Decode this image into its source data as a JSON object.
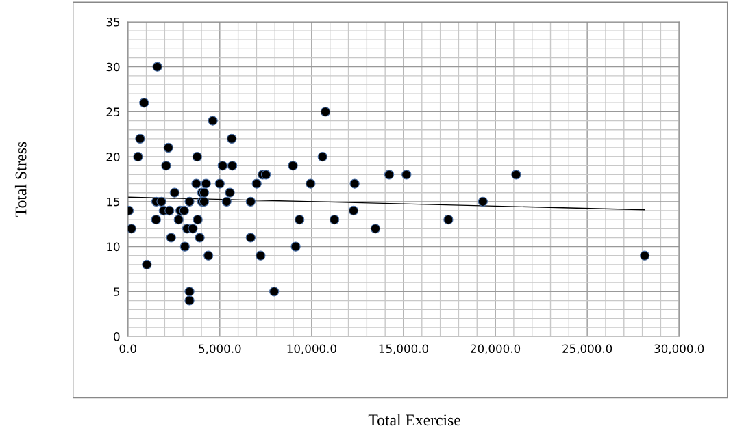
{
  "chart_data": {
    "type": "scatter",
    "xlabel": "Total Exercise",
    "ylabel": "Total Stress",
    "xlim": [
      0,
      30000
    ],
    "ylim": [
      0,
      35
    ],
    "xticks": [
      {
        "value": 0,
        "label": "0.0"
      },
      {
        "value": 1000,
        "label": null
      },
      {
        "value": 2000,
        "label": null
      },
      {
        "value": 3000,
        "label": null
      },
      {
        "value": 4000,
        "label": null
      },
      {
        "value": 5000,
        "label": "5,000.0"
      },
      {
        "value": 6000,
        "label": null
      },
      {
        "value": 7000,
        "label": null
      },
      {
        "value": 8000,
        "label": null
      },
      {
        "value": 9000,
        "label": null
      },
      {
        "value": 10000,
        "label": "10,000.0"
      },
      {
        "value": 11000,
        "label": null
      },
      {
        "value": 12000,
        "label": null
      },
      {
        "value": 13000,
        "label": null
      },
      {
        "value": 14000,
        "label": null
      },
      {
        "value": 15000,
        "label": "15,000.0"
      },
      {
        "value": 16000,
        "label": null
      },
      {
        "value": 17000,
        "label": null
      },
      {
        "value": 18000,
        "label": null
      },
      {
        "value": 19000,
        "label": null
      },
      {
        "value": 20000,
        "label": "20,000.0"
      },
      {
        "value": 21000,
        "label": null
      },
      {
        "value": 22000,
        "label": null
      },
      {
        "value": 23000,
        "label": null
      },
      {
        "value": 24000,
        "label": null
      },
      {
        "value": 25000,
        "label": "25,000.0"
      },
      {
        "value": 26000,
        "label": null
      },
      {
        "value": 27000,
        "label": null
      },
      {
        "value": 28000,
        "label": null
      },
      {
        "value": 29000,
        "label": null
      },
      {
        "value": 30000,
        "label": "30,000.0"
      }
    ],
    "yticks": [
      0,
      {
        "value": 1,
        "label": null
      },
      {
        "value": 2,
        "label": null
      },
      {
        "value": 3,
        "label": null
      },
      {
        "value": 4,
        "label": null
      },
      5,
      {
        "value": 6,
        "label": null
      },
      {
        "value": 7,
        "label": null
      },
      {
        "value": 8,
        "label": null
      },
      {
        "value": 9,
        "label": null
      },
      10,
      {
        "value": 11,
        "label": null
      },
      {
        "value": 12,
        "label": null
      },
      {
        "value": 13,
        "label": null
      },
      {
        "value": 14,
        "label": null
      },
      15,
      {
        "value": 16,
        "label": null
      },
      {
        "value": 17,
        "label": null
      },
      {
        "value": 18,
        "label": null
      },
      {
        "value": 19,
        "label": null
      },
      20,
      {
        "value": 21,
        "label": null
      },
      {
        "value": 22,
        "label": null
      },
      {
        "value": 23,
        "label": null
      },
      {
        "value": 24,
        "label": null
      },
      25,
      {
        "value": 26,
        "label": null
      },
      {
        "value": 27,
        "label": null
      },
      {
        "value": 28,
        "label": null
      },
      {
        "value": 29,
        "label": null
      },
      30,
      {
        "value": 31,
        "label": null
      },
      {
        "value": 32,
        "label": null
      },
      {
        "value": 33,
        "label": null
      },
      {
        "value": 34,
        "label": null
      },
      35
    ],
    "grid": true,
    "marker": "circle",
    "legend": false,
    "series": [
      {
        "color": "#000000",
        "x": [
          1600,
          880,
          4620,
          660,
          5650,
          2200,
          550,
          3770,
          2080,
          5150,
          5680,
          3720,
          4250,
          5000,
          2540,
          4030,
          4150,
          5550,
          1540,
          1820,
          3350,
          4030,
          4150,
          5370,
          6680,
          50,
          1940,
          2260,
          2850,
          3060,
          1530,
          2760,
          3800,
          190,
          3220,
          3530,
          2350,
          3910,
          6680,
          3100,
          4380,
          1030,
          3350,
          3350,
          10750,
          10590,
          8980,
          7330,
          7510,
          7010,
          9940,
          9340,
          11240,
          9130,
          7220,
          7960,
          14220,
          15160,
          21130,
          12340,
          19320,
          12280,
          17440,
          13470,
          28130
        ],
        "values": [
          30,
          26,
          24,
          22,
          22,
          21,
          20,
          20,
          19,
          19,
          19,
          17,
          17,
          17,
          16,
          16,
          16,
          16,
          15,
          15,
          15,
          15,
          15,
          15,
          15,
          14,
          14,
          14,
          14,
          14,
          13,
          13,
          13,
          12,
          12,
          12,
          11,
          11,
          11,
          10,
          9,
          8,
          5,
          4,
          25,
          20,
          19,
          18,
          18,
          17,
          17,
          13,
          13,
          10,
          9,
          5,
          18,
          18,
          18,
          17,
          15,
          14,
          13,
          12,
          9
        ]
      },
      {
        "type": "line",
        "color": "#000000",
        "marker": "none",
        "x": [
          0,
          28130
        ],
        "values": [
          15.5,
          14.1
        ]
      }
    ]
  }
}
